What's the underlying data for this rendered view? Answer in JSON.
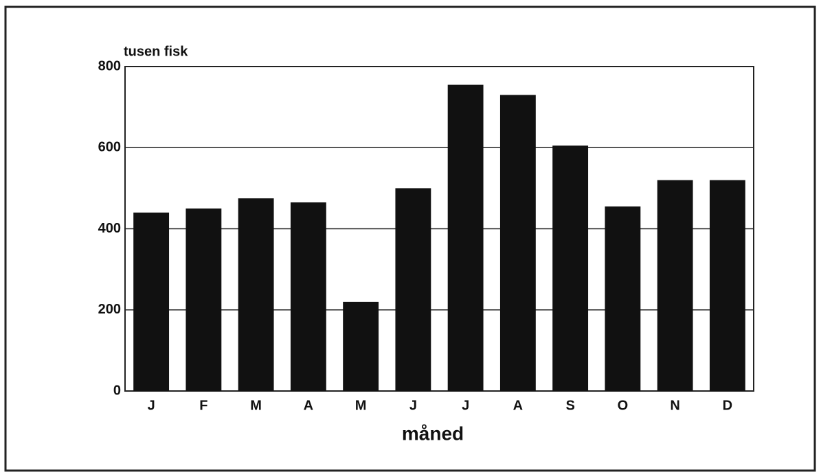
{
  "chart_data": {
    "type": "bar",
    "ylabel": "tusen fisk",
    "xlabel": "måned",
    "categories": [
      "J",
      "F",
      "M",
      "A",
      "M",
      "J",
      "J",
      "A",
      "S",
      "O",
      "N",
      "D"
    ],
    "values": [
      440,
      450,
      475,
      465,
      220,
      500,
      755,
      730,
      605,
      455,
      520,
      520
    ],
    "color": "#111111",
    "ylim": [
      0,
      800
    ],
    "yticks": [
      0,
      200,
      400,
      600,
      800
    ],
    "grid": true
  }
}
